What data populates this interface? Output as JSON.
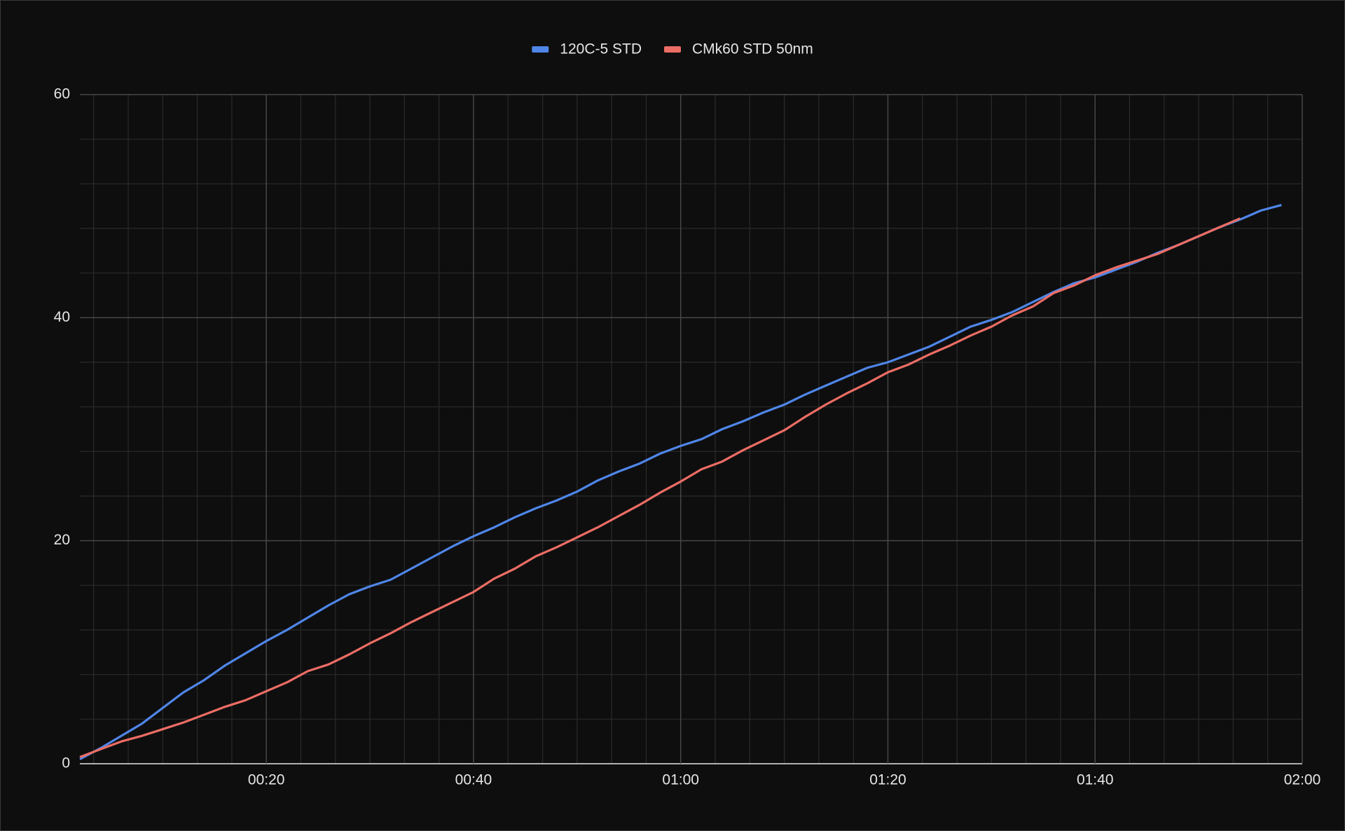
{
  "chart_data": {
    "type": "line",
    "x": [
      2,
      4,
      6,
      8,
      10,
      12,
      14,
      16,
      18,
      20,
      22,
      24,
      26,
      28,
      30,
      32,
      34,
      36,
      38,
      40,
      42,
      44,
      46,
      48,
      50,
      52,
      54,
      56,
      58,
      60,
      62,
      64,
      66,
      68,
      70,
      72,
      74,
      76,
      78,
      80,
      82,
      84,
      86,
      88,
      90,
      92,
      94,
      96,
      98,
      100,
      102,
      104,
      106,
      108,
      110,
      112,
      114,
      116,
      118
    ],
    "series": [
      {
        "name": "120C-5 STD",
        "color": "#4f86e8",
        "values": [
          0.4,
          1.4,
          2.5,
          3.6,
          5.0,
          6.4,
          7.5,
          8.8,
          9.9,
          11.0,
          12.0,
          13.1,
          14.2,
          15.2,
          15.9,
          16.5,
          17.5,
          18.5,
          19.5,
          20.4,
          21.2,
          22.1,
          22.9,
          23.6,
          24.4,
          25.4,
          26.2,
          26.9,
          27.8,
          28.5,
          29.1,
          30.0,
          30.7,
          31.5,
          32.2,
          33.1,
          33.9,
          34.7,
          35.5,
          36.0,
          36.7,
          37.4,
          38.3,
          39.2,
          39.8,
          40.5,
          41.4,
          42.3,
          43.1,
          43.6,
          44.3,
          45.0,
          45.8,
          46.5,
          47.3,
          48.1,
          48.8,
          49.6,
          50.1
        ]
      },
      {
        "name": "CMk60 STD 50nm",
        "color": "#ec6d64",
        "values": [
          0.6,
          1.3,
          2.0,
          2.5,
          3.1,
          3.7,
          4.4,
          5.1,
          5.7,
          6.5,
          7.3,
          8.3,
          8.9,
          9.8,
          10.8,
          11.7,
          12.7,
          13.6,
          14.5,
          15.4,
          16.6,
          17.5,
          18.6,
          19.4,
          20.3,
          21.2,
          22.2,
          23.2,
          24.3,
          25.3,
          26.4,
          27.1,
          28.1,
          29.0,
          29.9,
          31.1,
          32.2,
          33.2,
          34.1,
          35.1,
          35.8,
          36.7,
          37.5,
          38.4,
          39.2,
          40.2,
          41.0,
          42.2,
          42.9,
          43.8,
          44.5,
          45.1,
          45.7,
          46.5,
          47.3,
          48.1,
          48.9,
          null,
          null
        ]
      }
    ],
    "xlim": [
      2,
      120
    ],
    "xticks": [
      {
        "value": 20,
        "label": "00:20"
      },
      {
        "value": 40,
        "label": "00:40"
      },
      {
        "value": 60,
        "label": "01:00"
      },
      {
        "value": 80,
        "label": "01:20"
      },
      {
        "value": 100,
        "label": "01:40"
      },
      {
        "value": 120,
        "label": "02:00"
      }
    ],
    "x_minor_ticks": [
      3.33,
      6.67,
      10,
      13.33,
      16.67,
      23.33,
      26.67,
      30,
      33.33,
      36.67,
      43.33,
      46.67,
      50,
      53.33,
      56.67,
      63.33,
      66.67,
      70,
      73.33,
      76.67,
      83.33,
      86.67,
      90,
      93.33,
      96.67,
      103.33,
      106.67,
      110,
      113.33,
      116.67
    ],
    "ylim": [
      0,
      60
    ],
    "yticks": [
      0,
      20,
      40,
      60
    ],
    "y_minor_ticks": [
      4,
      8,
      12,
      16,
      24,
      28,
      32,
      36,
      44,
      48,
      52,
      56
    ],
    "grid": true,
    "legend": "top"
  }
}
